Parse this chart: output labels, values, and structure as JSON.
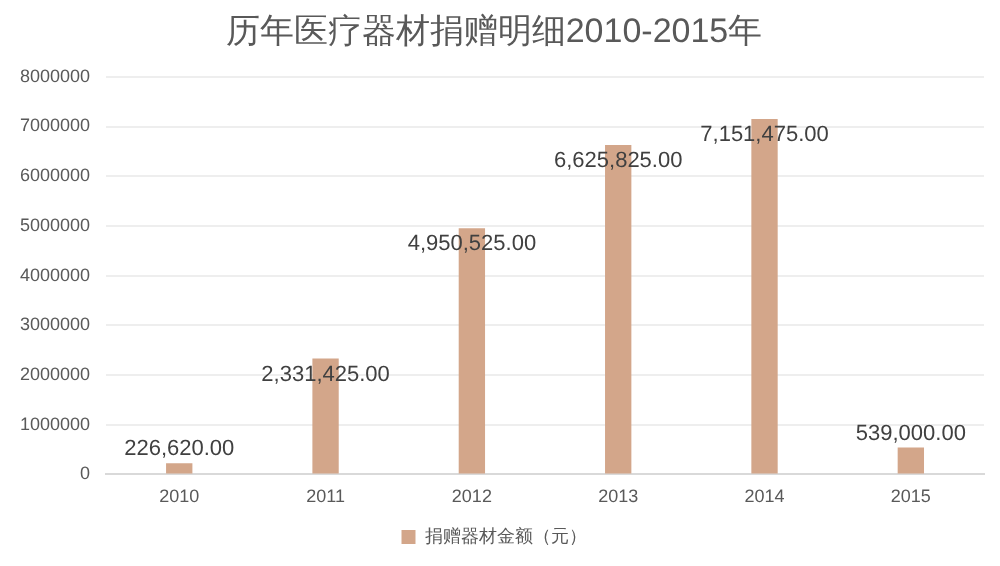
{
  "chart_data": {
    "type": "bar",
    "title": "历年医疗器材捐赠明细2010-2015年",
    "categories": [
      "2010",
      "2011",
      "2012",
      "2013",
      "2014",
      "2015"
    ],
    "series": [
      {
        "name": "捐赠器材金额（元）",
        "color": "#d3a68a",
        "values": [
          226620,
          2331425,
          4950525,
          6625825,
          7151475,
          539000
        ],
        "value_labels": [
          "226,620.00",
          "2,331,425.00",
          "4,950,525.00",
          "6,625,825.00",
          "7,151,475.00",
          "539,000.00"
        ]
      }
    ],
    "ylim": [
      0,
      8000000
    ],
    "yticks": [
      0,
      1000000,
      2000000,
      3000000,
      4000000,
      5000000,
      6000000,
      7000000,
      8000000
    ],
    "grid": "y",
    "legend": "bottom"
  }
}
